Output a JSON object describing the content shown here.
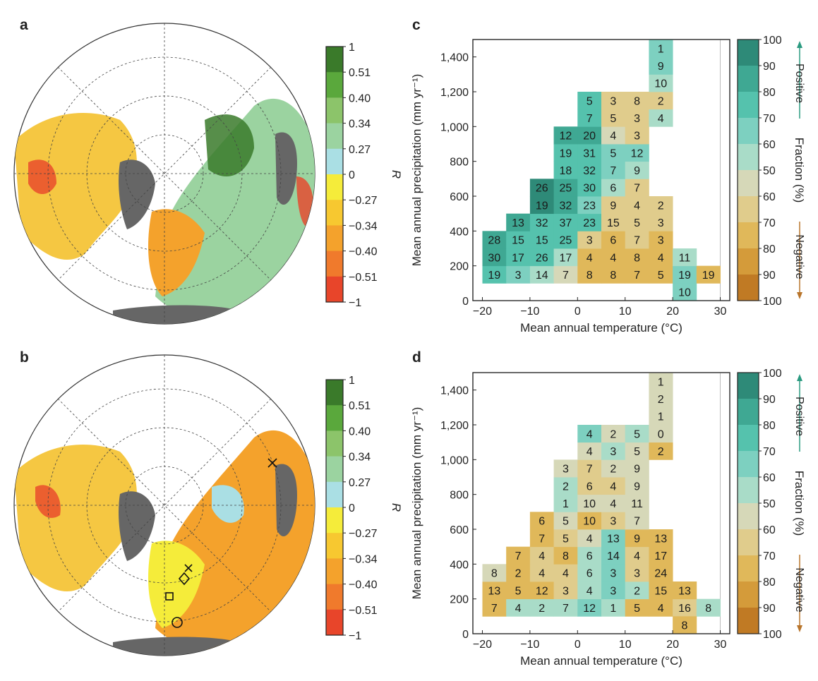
{
  "panels": {
    "a": "a",
    "b": "b",
    "c": "c",
    "d": "d"
  },
  "map_colorbar": {
    "label": "R",
    "ticks": [
      "1",
      "0.51",
      "0.40",
      "0.34",
      "0.27",
      "0",
      "−0.27",
      "−0.34",
      "−0.40",
      "−0.51",
      "−1"
    ],
    "colors": [
      "#3a7a2a",
      "#5aa83c",
      "#8cc46a",
      "#9bd3a0",
      "#aadfe4",
      "#f5ec3a",
      "#f7c830",
      "#f4a22c",
      "#f07a2c",
      "#e8452a"
    ]
  },
  "fraction_colorbar": {
    "ticks": [
      "100",
      "90",
      "80",
      "70",
      "60",
      "50",
      "60",
      "70",
      "80",
      "90",
      "100"
    ],
    "colors": [
      "#2e8a78",
      "#3fa893",
      "#55c2ad",
      "#7dd0c0",
      "#a9dcc8",
      "#d6d8b8",
      "#e0cc8c",
      "#e0b85a",
      "#d49b3a",
      "#c07a24"
    ],
    "positive_label": "Positive",
    "negative_label": "Negative",
    "middle_label": "Fraction (%)",
    "positive_color": "#2a9a80",
    "negative_color": "#b8742a"
  },
  "chart_data": [
    {
      "type": "heatmap",
      "panel": "c",
      "xlabel": "Mean annual temperature (°C)",
      "ylabel": "Mean annual precipitation (mm yr⁻¹)",
      "xlim": [
        -22,
        32
      ],
      "ylim": [
        0,
        1500
      ],
      "xticks": [
        "−20",
        "−10",
        "0",
        "10",
        "20",
        "30"
      ],
      "xtick_values": [
        -20,
        -10,
        0,
        10,
        20,
        30
      ],
      "yticks": [
        "0",
        "200",
        "400",
        "600",
        "800",
        "1,000",
        "1,200",
        "1,400"
      ],
      "ytick_values": [
        0,
        200,
        400,
        600,
        800,
        1000,
        1200,
        1400
      ],
      "x_bin_start": -20,
      "x_bin_width": 5,
      "y_bin_start": 100,
      "y_bin_height": 100,
      "cells": [
        {
          "col": 0,
          "row": 0,
          "v": "19",
          "s": 2
        },
        {
          "col": 1,
          "row": 0,
          "v": "3",
          "s": 3
        },
        {
          "col": 2,
          "row": 0,
          "v": "14",
          "s": 4
        },
        {
          "col": 3,
          "row": 0,
          "v": "7",
          "s": 5
        },
        {
          "col": 4,
          "row": 0,
          "v": "8",
          "s": 7
        },
        {
          "col": 5,
          "row": 0,
          "v": "8",
          "s": 7
        },
        {
          "col": 6,
          "row": 0,
          "v": "7",
          "s": 7
        },
        {
          "col": 7,
          "row": 0,
          "v": "5",
          "s": 7
        },
        {
          "col": 8,
          "row": 0,
          "v": "19",
          "s": 3
        },
        {
          "col": 9,
          "row": 0,
          "v": "19",
          "s": 7
        },
        {
          "col": 8,
          "row": -1,
          "v": "10",
          "s": 3
        },
        {
          "col": 0,
          "row": 1,
          "v": "30",
          "s": 1
        },
        {
          "col": 1,
          "row": 1,
          "v": "17",
          "s": 2
        },
        {
          "col": 2,
          "row": 1,
          "v": "26",
          "s": 2
        },
        {
          "col": 3,
          "row": 1,
          "v": "17",
          "s": 4
        },
        {
          "col": 4,
          "row": 1,
          "v": "4",
          "s": 7
        },
        {
          "col": 5,
          "row": 1,
          "v": "4",
          "s": 7
        },
        {
          "col": 6,
          "row": 1,
          "v": "8",
          "s": 7
        },
        {
          "col": 7,
          "row": 1,
          "v": "4",
          "s": 7
        },
        {
          "col": 8,
          "row": 1,
          "v": "11",
          "s": 4
        },
        {
          "col": 0,
          "row": 2,
          "v": "28",
          "s": 1
        },
        {
          "col": 1,
          "row": 2,
          "v": "15",
          "s": 2
        },
        {
          "col": 2,
          "row": 2,
          "v": "15",
          "s": 2
        },
        {
          "col": 3,
          "row": 2,
          "v": "25",
          "s": 2
        },
        {
          "col": 4,
          "row": 2,
          "v": "3",
          "s": 6
        },
        {
          "col": 5,
          "row": 2,
          "v": "6",
          "s": 7
        },
        {
          "col": 6,
          "row": 2,
          "v": "7",
          "s": 6
        },
        {
          "col": 7,
          "row": 2,
          "v": "3",
          "s": 7
        },
        {
          "col": 1,
          "row": 3,
          "v": "13",
          "s": 1
        },
        {
          "col": 2,
          "row": 3,
          "v": "32",
          "s": 2
        },
        {
          "col": 3,
          "row": 3,
          "v": "37",
          "s": 2
        },
        {
          "col": 4,
          "row": 3,
          "v": "23",
          "s": 2
        },
        {
          "col": 5,
          "row": 3,
          "v": "15",
          "s": 6
        },
        {
          "col": 6,
          "row": 3,
          "v": "5",
          "s": 6
        },
        {
          "col": 7,
          "row": 3,
          "v": "3",
          "s": 6
        },
        {
          "col": 2,
          "row": 4,
          "v": "19",
          "s": 0
        },
        {
          "col": 3,
          "row": 4,
          "v": "32",
          "s": 1
        },
        {
          "col": 4,
          "row": 4,
          "v": "23",
          "s": 3
        },
        {
          "col": 5,
          "row": 4,
          "v": "9",
          "s": 6
        },
        {
          "col": 6,
          "row": 4,
          "v": "4",
          "s": 6
        },
        {
          "col": 7,
          "row": 4,
          "v": "2",
          "s": 6
        },
        {
          "col": 2,
          "row": 5,
          "v": "26",
          "s": 0
        },
        {
          "col": 3,
          "row": 5,
          "v": "25",
          "s": 1
        },
        {
          "col": 4,
          "row": 5,
          "v": "30",
          "s": 2
        },
        {
          "col": 5,
          "row": 5,
          "v": "6",
          "s": 4
        },
        {
          "col": 6,
          "row": 5,
          "v": "7",
          "s": 6
        },
        {
          "col": 3,
          "row": 6,
          "v": "18",
          "s": 2
        },
        {
          "col": 4,
          "row": 6,
          "v": "32",
          "s": 2
        },
        {
          "col": 5,
          "row": 6,
          "v": "7",
          "s": 3
        },
        {
          "col": 6,
          "row": 6,
          "v": "9",
          "s": 4
        },
        {
          "col": 3,
          "row": 7,
          "v": "19",
          "s": 2
        },
        {
          "col": 4,
          "row": 7,
          "v": "31",
          "s": 2
        },
        {
          "col": 5,
          "row": 7,
          "v": "5",
          "s": 3
        },
        {
          "col": 6,
          "row": 7,
          "v": "12",
          "s": 3
        },
        {
          "col": 3,
          "row": 8,
          "v": "12",
          "s": 1
        },
        {
          "col": 4,
          "row": 8,
          "v": "20",
          "s": 1
        },
        {
          "col": 5,
          "row": 8,
          "v": "4",
          "s": 5
        },
        {
          "col": 6,
          "row": 8,
          "v": "3",
          "s": 6
        },
        {
          "col": 4,
          "row": 9,
          "v": "7",
          "s": 2
        },
        {
          "col": 5,
          "row": 9,
          "v": "5",
          "s": 6
        },
        {
          "col": 6,
          "row": 9,
          "v": "3",
          "s": 6
        },
        {
          "col": 7,
          "row": 9,
          "v": "4",
          "s": 4
        },
        {
          "col": 4,
          "row": 10,
          "v": "5",
          "s": 2
        },
        {
          "col": 5,
          "row": 10,
          "v": "3",
          "s": 6
        },
        {
          "col": 6,
          "row": 10,
          "v": "8",
          "s": 6
        },
        {
          "col": 7,
          "row": 10,
          "v": "2",
          "s": 6
        },
        {
          "col": 7,
          "row": 11,
          "v": "10",
          "s": 4
        },
        {
          "col": 7,
          "row": 12,
          "v": "9",
          "s": 3
        },
        {
          "col": 7,
          "row": 13,
          "v": "1",
          "s": 3
        }
      ]
    },
    {
      "type": "heatmap",
      "panel": "d",
      "xlabel": "Mean annual temperature (°C)",
      "ylabel": "Mean annual precipitation (mm yr⁻¹)",
      "xlim": [
        -22,
        32
      ],
      "ylim": [
        0,
        1500
      ],
      "xticks": [
        "−20",
        "−10",
        "0",
        "10",
        "20",
        "30"
      ],
      "xtick_values": [
        -20,
        -10,
        0,
        10,
        20,
        30
      ],
      "yticks": [
        "0",
        "200",
        "400",
        "600",
        "800",
        "1,000",
        "1,200",
        "1,400"
      ],
      "ytick_values": [
        0,
        200,
        400,
        600,
        800,
        1000,
        1200,
        1400
      ],
      "x_bin_start": -20,
      "x_bin_width": 5,
      "y_bin_start": 100,
      "y_bin_height": 100,
      "cells": [
        {
          "col": 0,
          "row": 0,
          "v": "7",
          "s": 7
        },
        {
          "col": 1,
          "row": 0,
          "v": "4",
          "s": 4
        },
        {
          "col": 2,
          "row": 0,
          "v": "2",
          "s": 4
        },
        {
          "col": 3,
          "row": 0,
          "v": "7",
          "s": 4
        },
        {
          "col": 4,
          "row": 0,
          "v": "12",
          "s": 3
        },
        {
          "col": 5,
          "row": 0,
          "v": "1",
          "s": 4
        },
        {
          "col": 6,
          "row": 0,
          "v": "5",
          "s": 7
        },
        {
          "col": 7,
          "row": 0,
          "v": "4",
          "s": 7
        },
        {
          "col": 8,
          "row": 0,
          "v": "16",
          "s": 6
        },
        {
          "col": 9,
          "row": 0,
          "v": "8",
          "s": 4
        },
        {
          "col": 8,
          "row": -1,
          "v": "8",
          "s": 7
        },
        {
          "col": 0,
          "row": 1,
          "v": "13",
          "s": 7
        },
        {
          "col": 1,
          "row": 1,
          "v": "5",
          "s": 7
        },
        {
          "col": 2,
          "row": 1,
          "v": "12",
          "s": 7
        },
        {
          "col": 3,
          "row": 1,
          "v": "3",
          "s": 6
        },
        {
          "col": 4,
          "row": 1,
          "v": "4",
          "s": 4
        },
        {
          "col": 5,
          "row": 1,
          "v": "3",
          "s": 3
        },
        {
          "col": 6,
          "row": 1,
          "v": "2",
          "s": 4
        },
        {
          "col": 7,
          "row": 1,
          "v": "15",
          "s": 7
        },
        {
          "col": 8,
          "row": 1,
          "v": "13",
          "s": 7
        },
        {
          "col": 0,
          "row": 2,
          "v": "8",
          "s": 5
        },
        {
          "col": 1,
          "row": 2,
          "v": "2",
          "s": 7
        },
        {
          "col": 2,
          "row": 2,
          "v": "4",
          "s": 6
        },
        {
          "col": 3,
          "row": 2,
          "v": "4",
          "s": 6
        },
        {
          "col": 4,
          "row": 2,
          "v": "6",
          "s": 4
        },
        {
          "col": 5,
          "row": 2,
          "v": "3",
          "s": 3
        },
        {
          "col": 6,
          "row": 2,
          "v": "3",
          "s": 6
        },
        {
          "col": 7,
          "row": 2,
          "v": "24",
          "s": 7
        },
        {
          "col": 1,
          "row": 3,
          "v": "7",
          "s": 7
        },
        {
          "col": 2,
          "row": 3,
          "v": "4",
          "s": 6
        },
        {
          "col": 3,
          "row": 3,
          "v": "8",
          "s": 7
        },
        {
          "col": 4,
          "row": 3,
          "v": "6",
          "s": 4
        },
        {
          "col": 5,
          "row": 3,
          "v": "14",
          "s": 3
        },
        {
          "col": 6,
          "row": 3,
          "v": "4",
          "s": 6
        },
        {
          "col": 7,
          "row": 3,
          "v": "17",
          "s": 7
        },
        {
          "col": 2,
          "row": 4,
          "v": "7",
          "s": 7
        },
        {
          "col": 3,
          "row": 4,
          "v": "5",
          "s": 6
        },
        {
          "col": 4,
          "row": 4,
          "v": "4",
          "s": 5
        },
        {
          "col": 5,
          "row": 4,
          "v": "13",
          "s": 3
        },
        {
          "col": 6,
          "row": 4,
          "v": "9",
          "s": 7
        },
        {
          "col": 7,
          "row": 4,
          "v": "13",
          "s": 7
        },
        {
          "col": 2,
          "row": 5,
          "v": "6",
          "s": 7
        },
        {
          "col": 3,
          "row": 5,
          "v": "5",
          "s": 5
        },
        {
          "col": 4,
          "row": 5,
          "v": "10",
          "s": 7
        },
        {
          "col": 5,
          "row": 5,
          "v": "3",
          "s": 6
        },
        {
          "col": 6,
          "row": 5,
          "v": "7",
          "s": 5
        },
        {
          "col": 3,
          "row": 6,
          "v": "1",
          "s": 4
        },
        {
          "col": 4,
          "row": 6,
          "v": "10",
          "s": 5
        },
        {
          "col": 5,
          "row": 6,
          "v": "4",
          "s": 5
        },
        {
          "col": 6,
          "row": 6,
          "v": "11",
          "s": 5
        },
        {
          "col": 3,
          "row": 7,
          "v": "2",
          "s": 4
        },
        {
          "col": 4,
          "row": 7,
          "v": "6",
          "s": 6
        },
        {
          "col": 5,
          "row": 7,
          "v": "4",
          "s": 6
        },
        {
          "col": 6,
          "row": 7,
          "v": "9",
          "s": 5
        },
        {
          "col": 3,
          "row": 8,
          "v": "3",
          "s": 5
        },
        {
          "col": 4,
          "row": 8,
          "v": "7",
          "s": 6
        },
        {
          "col": 5,
          "row": 8,
          "v": "2",
          "s": 5
        },
        {
          "col": 6,
          "row": 8,
          "v": "9",
          "s": 5
        },
        {
          "col": 4,
          "row": 9,
          "v": "4",
          "s": 5
        },
        {
          "col": 5,
          "row": 9,
          "v": "3",
          "s": 4
        },
        {
          "col": 6,
          "row": 9,
          "v": "5",
          "s": 5
        },
        {
          "col": 7,
          "row": 9,
          "v": "2",
          "s": 7
        },
        {
          "col": 4,
          "row": 10,
          "v": "4",
          "s": 3
        },
        {
          "col": 5,
          "row": 10,
          "v": "2",
          "s": 5
        },
        {
          "col": 6,
          "row": 10,
          "v": "5",
          "s": 4
        },
        {
          "col": 7,
          "row": 10,
          "v": "0",
          "s": 5
        },
        {
          "col": 7,
          "row": 11,
          "v": "1",
          "s": 5
        },
        {
          "col": 7,
          "row": 12,
          "v": "2",
          "s": 5
        },
        {
          "col": 7,
          "row": 13,
          "v": "1",
          "s": 5
        }
      ]
    }
  ]
}
